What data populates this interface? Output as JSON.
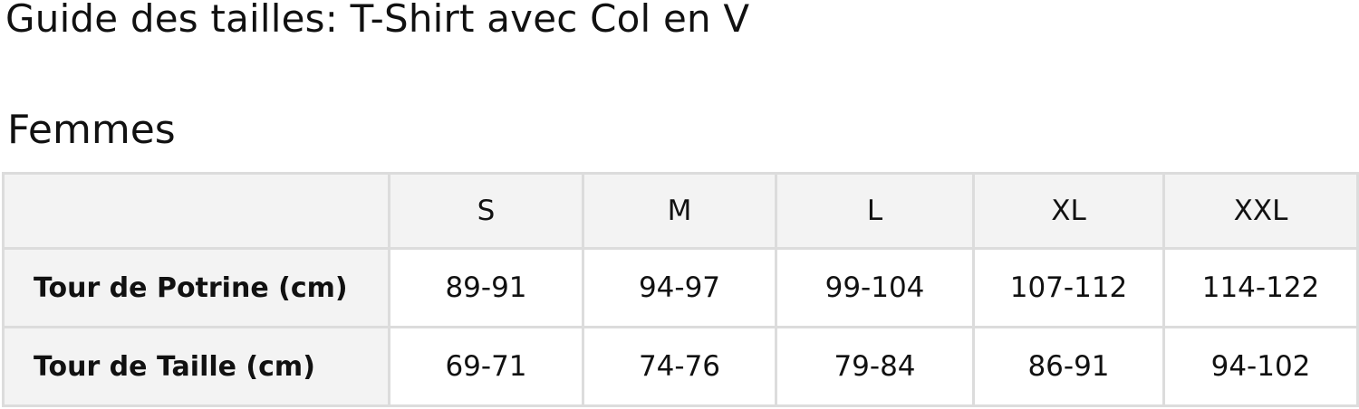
{
  "title": "Guide des tailles: T-Shirt avec Col en V",
  "section": "Femmes",
  "table": {
    "headers": [
      "",
      "S",
      "M",
      "L",
      "XL",
      "XXL"
    ],
    "rows": [
      {
        "label": "Tour de Potrine (cm)",
        "values": [
          "89-91",
          "94-97",
          "99-104",
          "107-112",
          "114-122"
        ]
      },
      {
        "label": "Tour de Taille (cm)",
        "values": [
          "69-71",
          "74-76",
          "79-84",
          "86-91",
          "94-102"
        ]
      }
    ]
  },
  "colors": {
    "header_bg": "#f3f3f3",
    "border": "#dcdcdc"
  }
}
